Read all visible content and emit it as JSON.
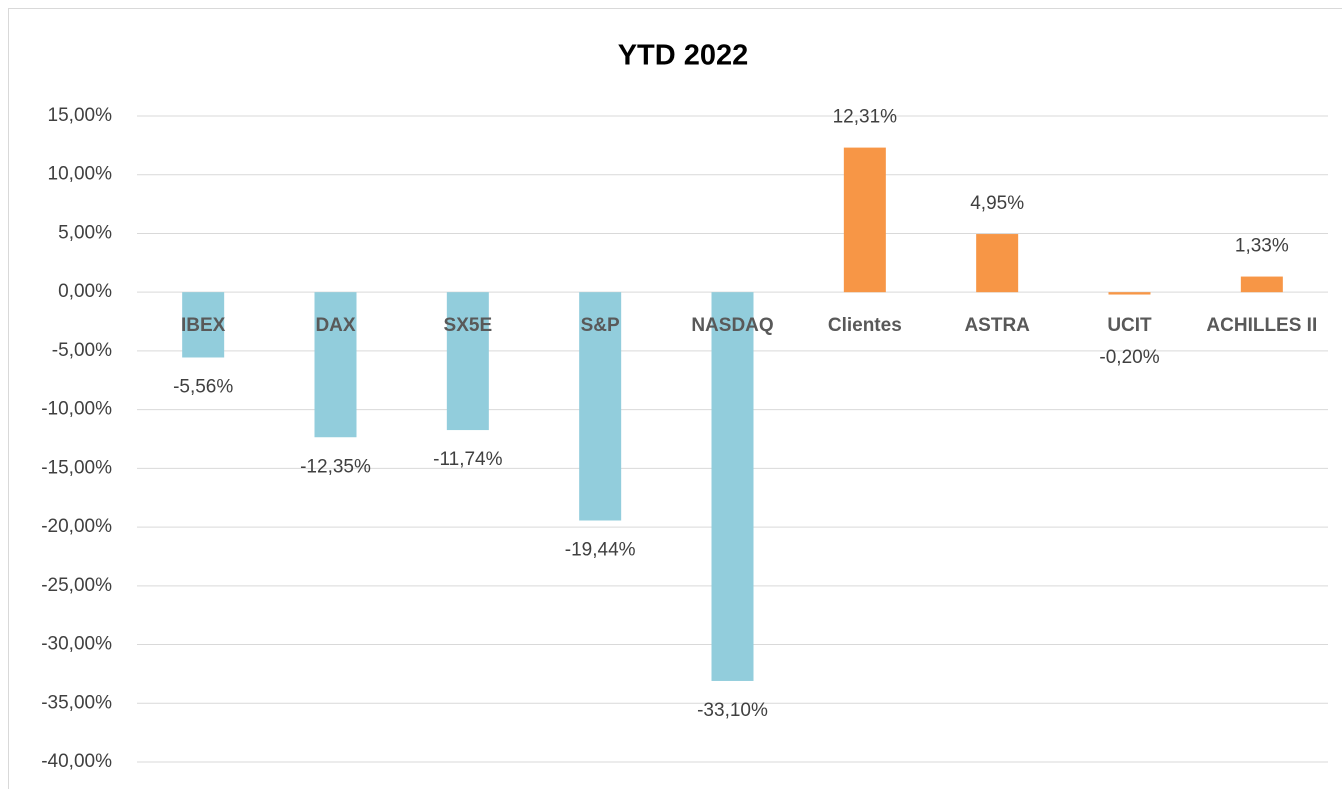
{
  "chart_data": {
    "type": "bar",
    "title": "YTD 2022",
    "categories": [
      "IBEX",
      "DAX",
      "SX5E",
      "S&P",
      "NASDAQ",
      "Clientes",
      "ASTRA",
      "UCIT",
      "ACHILLES II"
    ],
    "values": [
      -5.56,
      -12.35,
      -11.74,
      -19.44,
      -33.1,
      12.31,
      4.95,
      -0.2,
      1.33
    ],
    "value_labels": [
      "-5,56%",
      "-12,35%",
      "-11,74%",
      "-19,44%",
      "-33,10%",
      "12,31%",
      "4,95%",
      "-0,20%",
      "1,33%"
    ],
    "colors": [
      "#92cddc",
      "#92cddc",
      "#92cddc",
      "#92cddc",
      "#92cddc",
      "#f79646",
      "#f79646",
      "#f79646",
      "#f79646"
    ],
    "ylim": [
      -40,
      15
    ],
    "yticks": [
      {
        "value": 15,
        "label": "15,00%"
      },
      {
        "value": 10,
        "label": "10,00%"
      },
      {
        "value": 5,
        "label": "5,00%"
      },
      {
        "value": 0,
        "label": "0,00%"
      },
      {
        "value": -5,
        "label": "-5,00%"
      },
      {
        "value": -10,
        "label": "-10,00%"
      },
      {
        "value": -15,
        "label": "-15,00%"
      },
      {
        "value": -20,
        "label": "-20,00%"
      },
      {
        "value": -25,
        "label": "-25,00%"
      },
      {
        "value": -30,
        "label": "-30,00%"
      },
      {
        "value": -35,
        "label": "-35,00%"
      },
      {
        "value": -40,
        "label": "-40,00%"
      }
    ],
    "grid": true
  }
}
